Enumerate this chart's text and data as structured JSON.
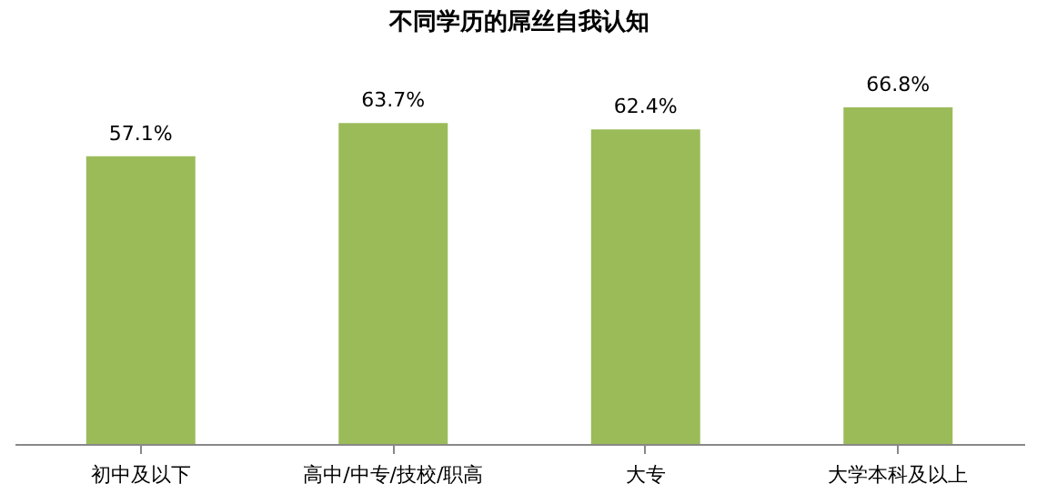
{
  "chart_data": {
    "type": "bar",
    "title": "不同学历的屌丝自我认知",
    "categories": [
      "初中及以下",
      "高中/中专/技校/职高",
      "大专",
      "大学本科及以上"
    ],
    "values": [
      57.1,
      63.7,
      62.4,
      66.8
    ],
    "value_labels": [
      "57.1%",
      "63.7%",
      "62.4%",
      "66.8%"
    ],
    "color": "#9bbb59",
    "grid": false
  }
}
